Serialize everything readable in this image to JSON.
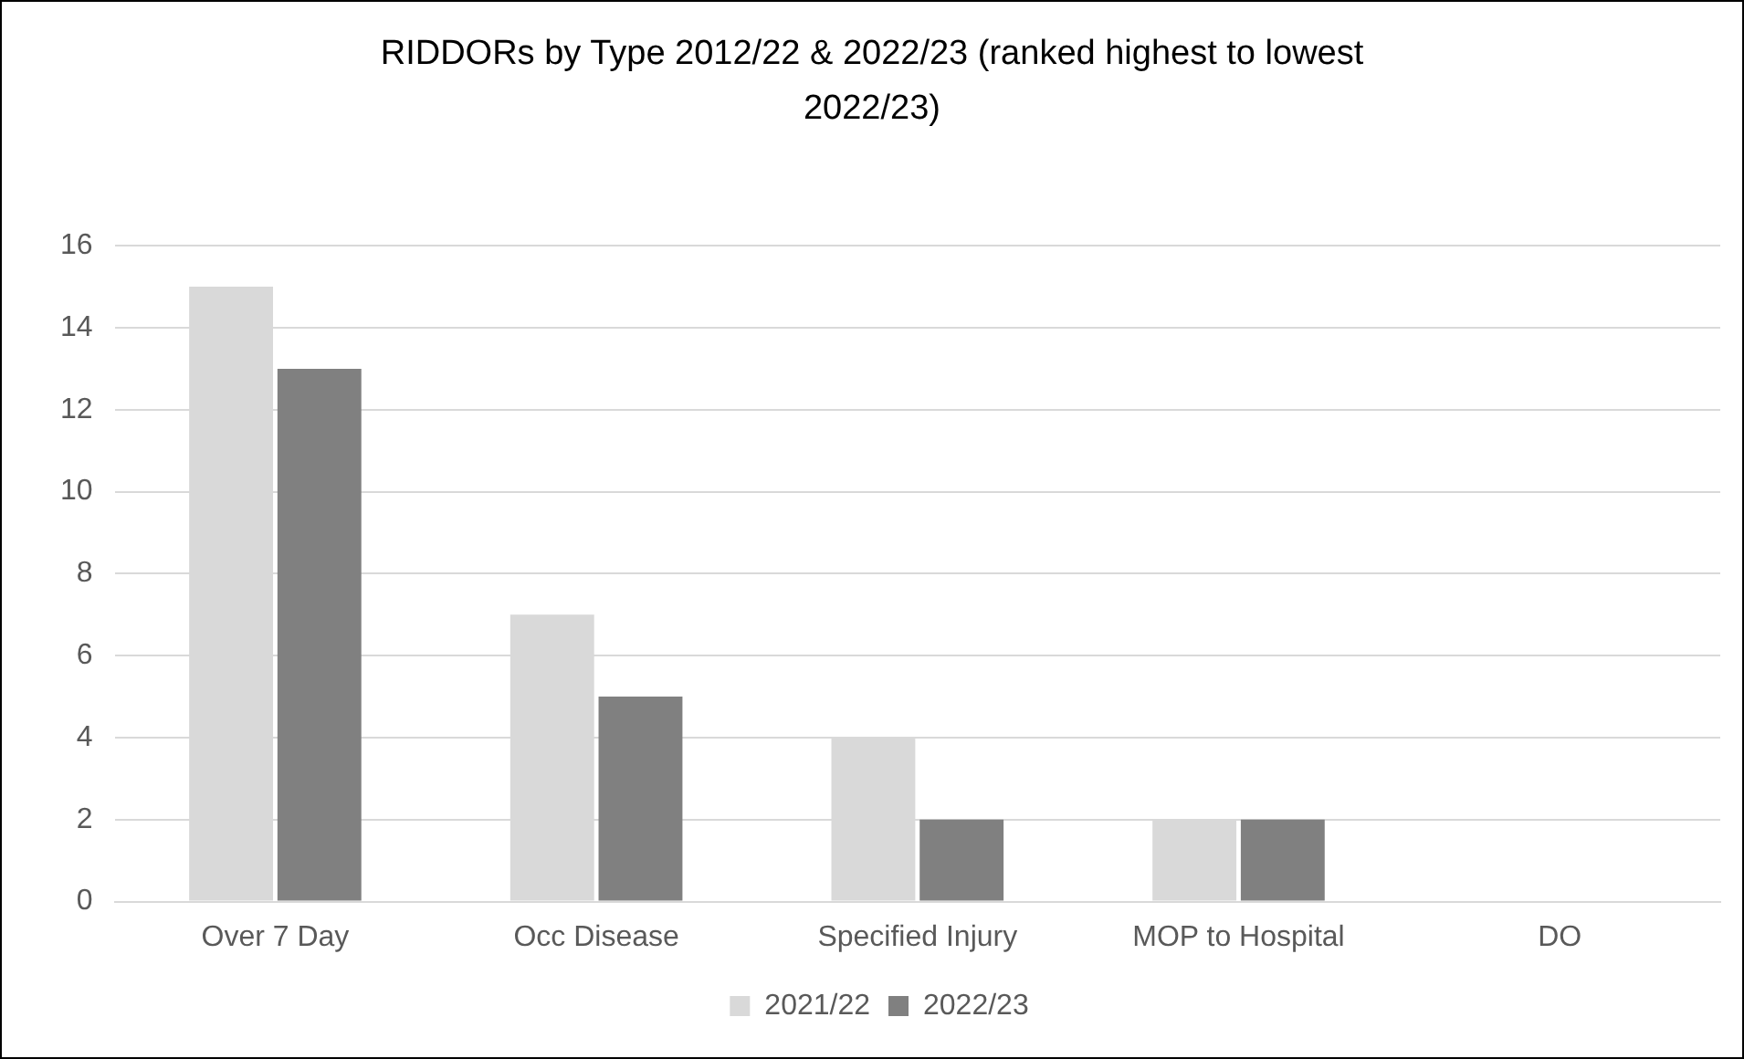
{
  "chart_data": {
    "type": "bar",
    "title": "RIDDORs by Type 2012/22 & 2022/23 (ranked highest to lowest 2022/23)",
    "categories": [
      "Over 7 Day",
      "Occ Disease",
      "Specified Injury",
      "MOP to Hospital",
      "DO"
    ],
    "series": [
      {
        "name": "2021/22",
        "color": "#d9d9d9",
        "values": [
          15,
          7,
          4,
          2,
          0
        ]
      },
      {
        "name": "2022/23",
        "color": "#808080",
        "values": [
          13,
          5,
          2,
          2,
          0
        ]
      }
    ],
    "ylim": [
      0,
      16
    ],
    "yticks": [
      0,
      2,
      4,
      6,
      8,
      10,
      12,
      14,
      16
    ],
    "grid": "y",
    "legend": "bottom"
  }
}
